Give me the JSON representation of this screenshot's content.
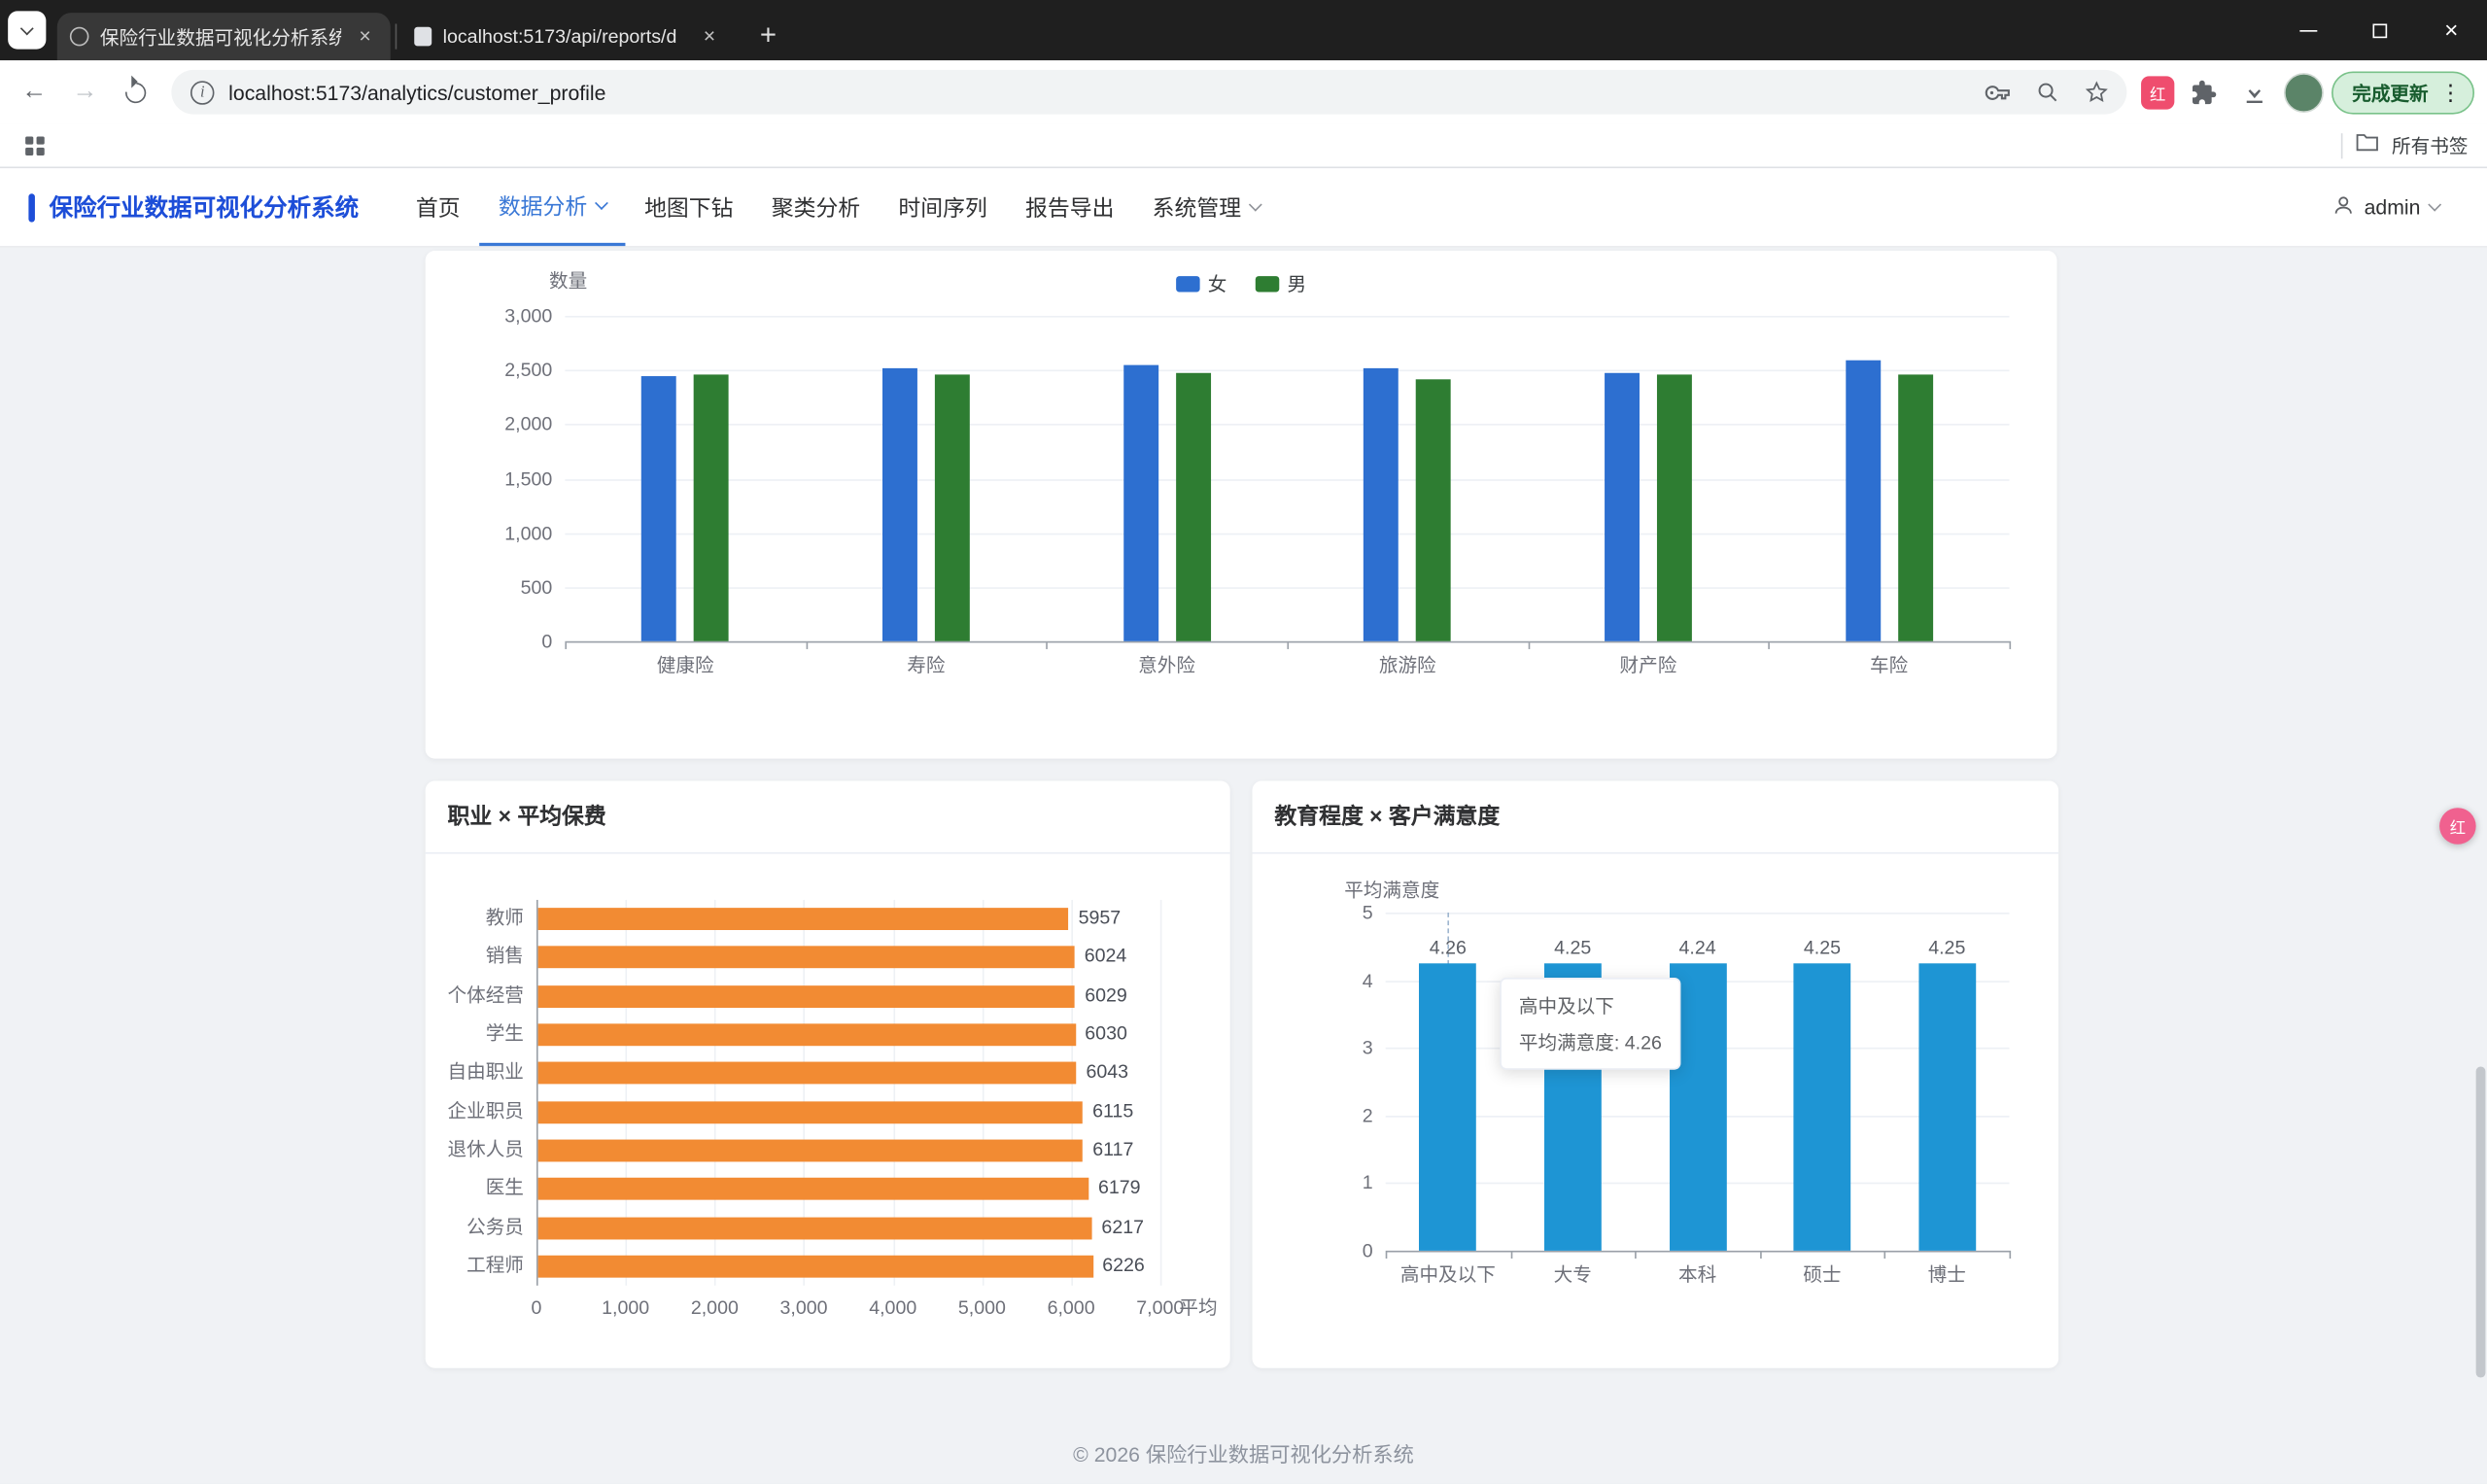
{
  "browser": {
    "tabs": [
      {
        "title": "保险行业数据可视化分析系统"
      },
      {
        "title": "localhost:5173/api/reports/d"
      }
    ],
    "url": "localhost:5173/analytics/customer_profile",
    "update_chip_label": "完成更新",
    "bookmarks_bar_label": "所有书签"
  },
  "app": {
    "brand": "保险行业数据可视化分析系统",
    "nav": [
      {
        "label": "首页"
      },
      {
        "label": "数据分析"
      },
      {
        "label": "地图下钻"
      },
      {
        "label": "聚类分析"
      },
      {
        "label": "时间序列"
      },
      {
        "label": "报告导出"
      },
      {
        "label": "系统管理"
      }
    ],
    "username": "admin",
    "footer": "© 2026 保险行业数据可视化分析系统"
  },
  "chart_data": [
    {
      "type": "bar",
      "title": "",
      "categories": [
        "健康险",
        "寿险",
        "意外险",
        "旅游险",
        "财产险",
        "车险"
      ],
      "series": [
        {
          "name": "女",
          "color": "#2d6fd0",
          "values": [
            2450,
            2520,
            2540,
            2510,
            2480,
            2590
          ]
        },
        {
          "name": "男",
          "color": "#2e7d32",
          "values": [
            2460,
            2460,
            2480,
            2420,
            2460,
            2460
          ]
        }
      ],
      "ylabel": "数量",
      "ylim": [
        0,
        3000
      ],
      "yticks": [
        0,
        500,
        1000,
        1500,
        2000,
        2500,
        3000
      ],
      "legend_position": "top-center",
      "grid": true
    },
    {
      "type": "bar-horizontal",
      "title": "职业 × 平均保费",
      "categories": [
        "教师",
        "销售",
        "个体经营",
        "学生",
        "自由职业",
        "企业职员",
        "退休人员",
        "医生",
        "公务员",
        "工程师"
      ],
      "values": [
        5957,
        6024,
        6029,
        6030,
        6043,
        6115,
        6117,
        6179,
        6217,
        6226
      ],
      "color": "#f28b33",
      "xlim": [
        0,
        7000
      ],
      "xticks": [
        0,
        1000,
        2000,
        3000,
        4000,
        5000,
        6000,
        7000
      ],
      "xlabel": "平均",
      "value_labels": true,
      "grid": true
    },
    {
      "type": "bar",
      "title": "教育程度 × 客户满意度",
      "categories": [
        "高中及以下",
        "大专",
        "本科",
        "硕士",
        "博士"
      ],
      "values": [
        4.26,
        4.25,
        4.24,
        4.25,
        4.25
      ],
      "color": "#1e95d4",
      "ylabel": "平均满意度",
      "ylim": [
        0,
        5
      ],
      "yticks": [
        0,
        1,
        2,
        3,
        4,
        5
      ],
      "value_labels": true,
      "grid": true,
      "tooltip": {
        "title": "高中及以下",
        "text": "平均满意度: 4.26"
      }
    }
  ]
}
